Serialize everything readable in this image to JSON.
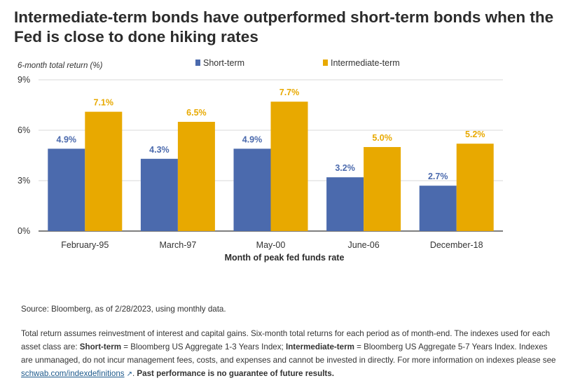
{
  "title": "Intermediate-term bonds have outperformed short-term bonds when the Fed is close to done hiking rates",
  "chart_data": {
    "type": "bar",
    "ylabel": "6-month total return (%)",
    "xlabel": "Month of peak fed funds rate",
    "categories": [
      "February-95",
      "March-97",
      "May-00",
      "June-06",
      "December-18"
    ],
    "series": [
      {
        "name": "Short-term",
        "color": "#4b6aad",
        "values": [
          4.9,
          4.3,
          4.9,
          3.2,
          2.7
        ],
        "labels": [
          "4.9%",
          "4.3%",
          "4.9%",
          "3.2%",
          "2.7%"
        ]
      },
      {
        "name": "Intermediate-term",
        "color": "#e8a900",
        "values": [
          7.1,
          6.5,
          7.7,
          5.0,
          5.2
        ],
        "labels": [
          "7.1%",
          "6.5%",
          "7.7%",
          "5.0%",
          "5.2%"
        ]
      }
    ],
    "ylim": [
      0,
      9
    ],
    "yticks": [
      0,
      3,
      6,
      9
    ],
    "ytick_labels": [
      "0%",
      "3%",
      "6%",
      "9%"
    ],
    "grid": true,
    "legend_position": "top"
  },
  "footer": {
    "source": "Source: Bloomberg, as of 2/28/2023, using monthly data.",
    "note_part1": "Total return assumes reinvestment of interest and capital gains. Six-month total returns for each period as of month-end. The indexes used for each asset class are: ",
    "short_label": "Short-term",
    "short_def": " =  Bloomberg US Aggregate 1-3 Years Index; ",
    "inter_label": "Intermediate-term",
    "inter_def": " = Bloomberg US Aggregate 5-7 Years Index. Indexes are unmanaged, do not incur management fees, costs, and expenses and cannot be invested in directly. For more information on indexes please see ",
    "link_text": "schwab.com/indexdefinitions",
    "link_icon": "external-link-icon",
    "after_link": ". ",
    "disclaimer": "Past performance is no guarantee of future results."
  }
}
